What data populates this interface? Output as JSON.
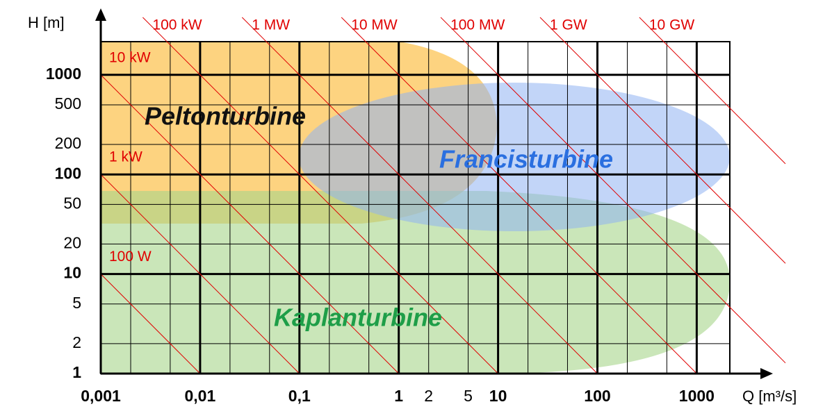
{
  "chart_data": {
    "type": "log-region",
    "x_label": "Q [m³/s]",
    "y_label": "H [m]",
    "xlim": [
      0.001,
      2154
    ],
    "ylim": [
      1,
      2154
    ],
    "log_x": true,
    "log_y": true,
    "grid": true,
    "xticks": [
      {
        "value": 0.001,
        "label": "0,001"
      },
      {
        "value": 0.01,
        "label": "0,01"
      },
      {
        "value": 0.1,
        "label": "0,1"
      },
      1,
      2,
      5,
      10,
      100,
      1000
    ],
    "xminor": [
      0.002,
      0.005,
      0.02,
      0.05,
      0.2,
      0.5,
      20,
      50,
      200,
      500
    ],
    "yticks": [
      1,
      2,
      5,
      10,
      20,
      50,
      100,
      200,
      500,
      1000
    ],
    "power_lines": {
      "color": "#e00000",
      "values": [
        100,
        1000,
        10000,
        100000,
        1000000,
        10000000,
        100000000,
        1000000000,
        10000000000
      ],
      "value_labels": [
        "100 W",
        "1 kW",
        "10 kW",
        "100 kW",
        "1 MW",
        "10 MW",
        "100 MW",
        "1 GW",
        "10 GW"
      ]
    },
    "regions": [
      "Peltonturbine",
      "Francisturbine",
      "Kaplanturbine"
    ]
  }
}
